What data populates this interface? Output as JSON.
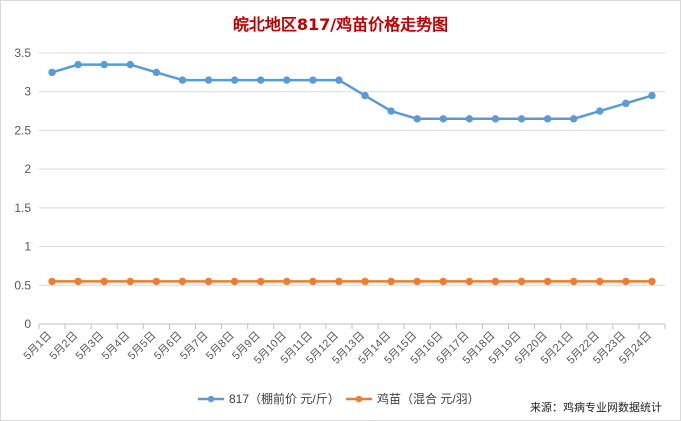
{
  "chart_data": {
    "type": "line",
    "title": "皖北地区817/鸡苗价格走势图",
    "categories": [
      "5月1日",
      "5月2日",
      "5月3日",
      "5月4日",
      "5月5日",
      "5月6日",
      "5月7日",
      "5月8日",
      "5月9日",
      "5月10日",
      "5月11日",
      "5月12日",
      "5月13日",
      "5月14日",
      "5月15日",
      "5月16日",
      "5月17日",
      "5月18日",
      "5月19日",
      "5月20日",
      "5月21日",
      "5月22日",
      "5月23日",
      "5月24日"
    ],
    "ylim": [
      0,
      3.5
    ],
    "yticks": [
      "0",
      "0.5",
      "1",
      "1.5",
      "2",
      "2.5",
      "3",
      "3.5"
    ],
    "grid": true,
    "legend_position": "bottom",
    "series": [
      {
        "name": "817（棚前价 元/斤）",
        "color": "#5b9bd5",
        "values": [
          3.25,
          3.35,
          3.35,
          3.35,
          3.25,
          3.15,
          3.15,
          3.15,
          3.15,
          3.15,
          3.15,
          3.15,
          2.95,
          2.75,
          2.65,
          2.65,
          2.65,
          2.65,
          2.65,
          2.65,
          2.65,
          2.75,
          2.85,
          2.95
        ]
      },
      {
        "name": "鸡苗（混合 元/羽）",
        "color": "#ed7d31",
        "values": [
          0.55,
          0.55,
          0.55,
          0.55,
          0.55,
          0.55,
          0.55,
          0.55,
          0.55,
          0.55,
          0.55,
          0.55,
          0.55,
          0.55,
          0.55,
          0.55,
          0.55,
          0.55,
          0.55,
          0.55,
          0.55,
          0.55,
          0.55,
          0.55
        ]
      }
    ],
    "source": "来源：鸡病专业网数据统计"
  }
}
